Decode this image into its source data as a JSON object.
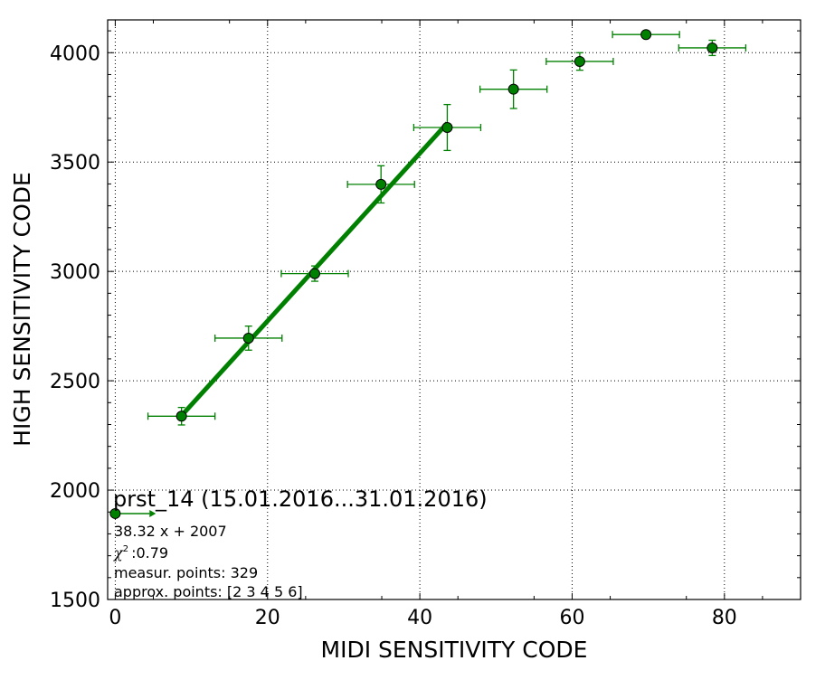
{
  "chart_data": {
    "type": "scatter",
    "title": "",
    "xlabel": "MIDI SENSITIVITY CODE",
    "ylabel": "HIGH SENSITIVITY CODE",
    "xlim": [
      -1,
      90
    ],
    "ylim": [
      1500,
      4150
    ],
    "x_ticks": [
      0,
      20,
      40,
      60,
      80
    ],
    "y_ticks": [
      1500,
      2000,
      2500,
      3000,
      3500,
      4000
    ],
    "grid": true,
    "grid_style": "dotted",
    "color": "#008000",
    "points": [
      {
        "x": 8.7,
        "y": 2338,
        "xerr": 4.4,
        "yerr": 40
      },
      {
        "x": 17.5,
        "y": 2695,
        "xerr": 4.4,
        "yerr": 55
      },
      {
        "x": 26.2,
        "y": 2990,
        "xerr": 4.4,
        "yerr": 35
      },
      {
        "x": 34.9,
        "y": 3398,
        "xerr": 4.4,
        "yerr": 85
      },
      {
        "x": 43.6,
        "y": 3658,
        "xerr": 4.4,
        "yerr": 105
      },
      {
        "x": 52.3,
        "y": 3833,
        "xerr": 4.4,
        "yerr": 88
      },
      {
        "x": 61.0,
        "y": 3960,
        "xerr": 4.4,
        "yerr": 40
      },
      {
        "x": 69.7,
        "y": 4083,
        "xerr": 4.4,
        "yerr": 0
      },
      {
        "x": 78.4,
        "y": 4022,
        "xerr": 4.4,
        "yerr": 35
      }
    ],
    "fit_line": {
      "slope": 38.32,
      "intercept": 2007,
      "x_range": [
        8.7,
        43.6
      ]
    },
    "marker_point": {
      "x": 0,
      "y": 1893,
      "arrow_to_x": 4.5
    }
  },
  "annotations": {
    "title": "prst_14 (15.01.2016...31.01.2016)",
    "equation": "38.32 x + 2007",
    "chi_symbol": "χ",
    "chi_exponent": "2",
    "chi_value": ":0.79",
    "measur_points": "measur. points: 329",
    "approx_points": "approx. points: [2 3 4 5 6]"
  }
}
